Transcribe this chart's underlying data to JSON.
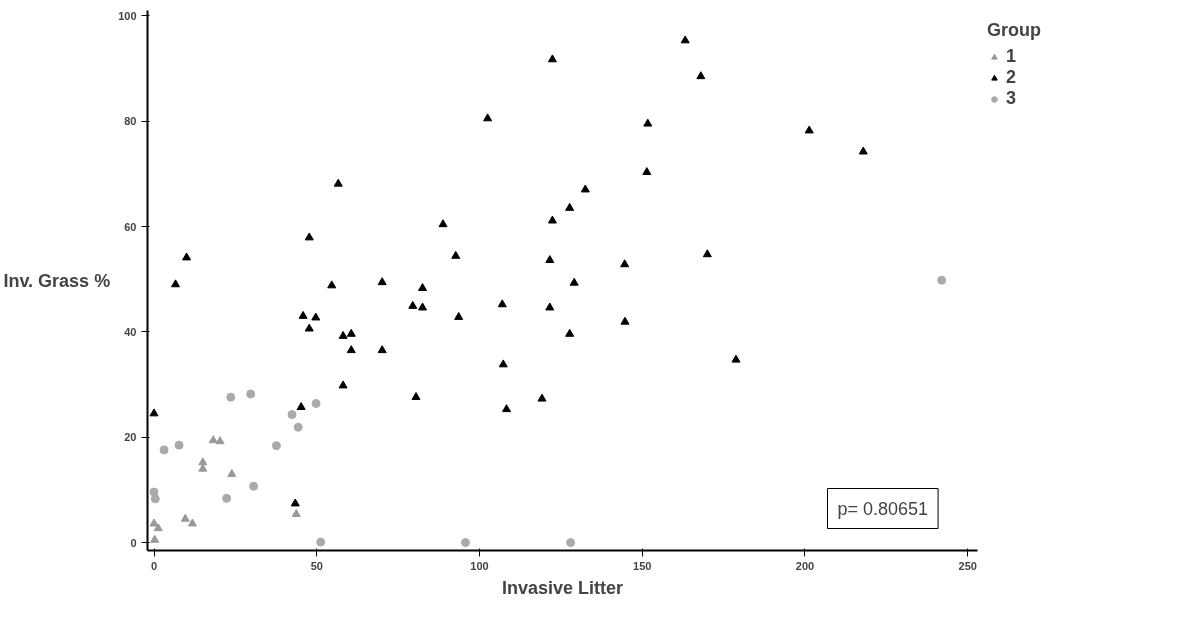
{
  "chart_data": {
    "type": "scatter",
    "xlabel": "Invasive Litter",
    "ylabel": "Inv. Grass %",
    "legend_title": "Group",
    "xlim": [
      -2,
      253
    ],
    "ylim": [
      -1.5,
      101
    ],
    "xticks": [
      0,
      50,
      100,
      150,
      200,
      250
    ],
    "yticks": [
      0,
      20,
      40,
      60,
      80,
      100
    ],
    "grid": false,
    "legend": "top right",
    "annotations": [
      "p= 0.80651"
    ],
    "series": [
      {
        "name": "1",
        "color": "#999999",
        "marker": "triangle",
        "x": [
          18.2,
          20.3,
          15,
          15,
          23.9,
          9.6,
          11.8,
          43.7,
          0,
          1.3,
          0.2
        ],
        "values": [
          19.4,
          19.2,
          15.2,
          14,
          13,
          4.5,
          3.6,
          5.4,
          3.6,
          2.7,
          0.5
        ]
      },
      {
        "name": "2",
        "color": "#000000",
        "marker": "triangle",
        "x": [
          6.6,
          10.0,
          47.7,
          56.6,
          54.6,
          45.8,
          49.7,
          47.7,
          58.1,
          60.6,
          60.6,
          58.1,
          70.1,
          70.1,
          79.5,
          82.5,
          82.5,
          80.5,
          88.8,
          92.7,
          93.6,
          102.5,
          107.0,
          107.3,
          122.4,
          122.4,
          121.6,
          121.6,
          119.2,
          163.2,
          168.0,
          151.7,
          201.3,
          217.9,
          151.4,
          132.5,
          127.7,
          144.6,
          170.0,
          129.1,
          144.7,
          127.7,
          178.8,
          108.3,
          0,
          45.2,
          43.4
        ],
        "values": [
          49.0,
          54.1,
          57.9,
          68.1,
          48.8,
          43.0,
          42.7,
          40.6,
          39.2,
          39.6,
          36.5,
          29.8,
          49.4,
          36.5,
          44.9,
          44.6,
          48.3,
          27.6,
          60.4,
          54.4,
          42.8,
          80.5,
          45.2,
          33.8,
          91.7,
          61.1,
          53.6,
          44.6,
          27.3,
          95.3,
          88.5,
          79.5,
          78.2,
          74.2,
          70.3,
          67.0,
          63.5,
          52.8,
          54.7,
          49.3,
          41.9,
          39.6,
          34.7,
          25.3,
          24.5,
          25.7,
          7.4
        ]
      },
      {
        "name": "3",
        "color": "#aaaaaa",
        "marker": "circle",
        "x": [
          23.6,
          29.7,
          42.4,
          44.3,
          37.6,
          7.7,
          3.1,
          0,
          0.4,
          30.6,
          22.3,
          51.2,
          49.8,
          95.7,
          128,
          242
        ],
        "values": [
          27.6,
          28.2,
          24.3,
          21.9,
          18.4,
          18.5,
          17.6,
          9.6,
          8.3,
          10.7,
          8.4,
          0.1,
          26.4,
          0,
          0,
          49.8
        ]
      }
    ]
  }
}
